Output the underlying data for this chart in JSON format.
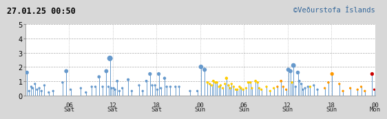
{
  "title_left": "27.01.25 00:50",
  "title_right": "©Veðurstofa Íslands",
  "xlim": [
    0,
    48
  ],
  "ylim": [
    0,
    5
  ],
  "yticks": [
    0,
    1,
    2,
    3,
    4,
    5
  ],
  "xticks": [
    6,
    12,
    18,
    24,
    30,
    36,
    42,
    48
  ],
  "xticklabels_top": [
    "06",
    "12",
    "18",
    "00",
    "06",
    "12",
    "18",
    "00"
  ],
  "xticklabels_bot": [
    "Sat",
    "Sat",
    "Sat",
    "Sun",
    "Sun",
    "Sun",
    "Sun",
    "Mon"
  ],
  "vlines": [
    0,
    6,
    12,
    18,
    24,
    30,
    36,
    42,
    48
  ],
  "bg_color": "#d8d8d8",
  "plot_bg": "#ffffff",
  "blue_color": "#6699cc",
  "yellow_color": "#ffcc00",
  "orange_color": "#ff9900",
  "red_color": "#cc0000",
  "earthquakes": [
    {
      "t": 0.2,
      "m": 1.6,
      "color": "blue"
    },
    {
      "t": 0.5,
      "m": 0.3,
      "color": "blue"
    },
    {
      "t": 0.8,
      "m": 0.6,
      "color": "blue"
    },
    {
      "t": 1.0,
      "m": 0.5,
      "color": "blue"
    },
    {
      "t": 1.3,
      "m": 0.8,
      "color": "blue"
    },
    {
      "t": 1.6,
      "m": 0.4,
      "color": "blue"
    },
    {
      "t": 1.9,
      "m": 0.5,
      "color": "blue"
    },
    {
      "t": 2.2,
      "m": 0.3,
      "color": "blue"
    },
    {
      "t": 2.6,
      "m": 0.7,
      "color": "blue"
    },
    {
      "t": 3.2,
      "m": 0.2,
      "color": "blue"
    },
    {
      "t": 3.8,
      "m": 0.3,
      "color": "blue"
    },
    {
      "t": 5.1,
      "m": 0.9,
      "color": "blue"
    },
    {
      "t": 5.6,
      "m": 1.7,
      "color": "blue"
    },
    {
      "t": 6.2,
      "m": 0.4,
      "color": "blue"
    },
    {
      "t": 7.6,
      "m": 0.5,
      "color": "blue"
    },
    {
      "t": 8.3,
      "m": 0.2,
      "color": "blue"
    },
    {
      "t": 9.1,
      "m": 0.6,
      "color": "blue"
    },
    {
      "t": 9.6,
      "m": 0.6,
      "color": "blue"
    },
    {
      "t": 10.1,
      "m": 1.3,
      "color": "blue"
    },
    {
      "t": 10.6,
      "m": 0.6,
      "color": "blue"
    },
    {
      "t": 11.1,
      "m": 1.7,
      "color": "blue"
    },
    {
      "t": 11.4,
      "m": 0.6,
      "color": "blue"
    },
    {
      "t": 11.6,
      "m": 2.6,
      "color": "blue"
    },
    {
      "t": 11.8,
      "m": 0.5,
      "color": "blue"
    },
    {
      "t": 12.1,
      "m": 0.5,
      "color": "blue"
    },
    {
      "t": 12.3,
      "m": 0.4,
      "color": "blue"
    },
    {
      "t": 12.6,
      "m": 1.0,
      "color": "blue"
    },
    {
      "t": 12.9,
      "m": 0.3,
      "color": "blue"
    },
    {
      "t": 13.3,
      "m": 0.5,
      "color": "blue"
    },
    {
      "t": 14.1,
      "m": 1.1,
      "color": "blue"
    },
    {
      "t": 14.6,
      "m": 0.3,
      "color": "blue"
    },
    {
      "t": 15.6,
      "m": 0.7,
      "color": "blue"
    },
    {
      "t": 16.1,
      "m": 0.3,
      "color": "blue"
    },
    {
      "t": 16.6,
      "m": 1.0,
      "color": "blue"
    },
    {
      "t": 17.1,
      "m": 1.5,
      "color": "blue"
    },
    {
      "t": 17.4,
      "m": 0.7,
      "color": "blue"
    },
    {
      "t": 17.8,
      "m": 0.7,
      "color": "blue"
    },
    {
      "t": 18.1,
      "m": 0.4,
      "color": "blue"
    },
    {
      "t": 18.3,
      "m": 1.5,
      "color": "blue"
    },
    {
      "t": 18.6,
      "m": 0.5,
      "color": "blue"
    },
    {
      "t": 19.1,
      "m": 1.2,
      "color": "blue"
    },
    {
      "t": 19.4,
      "m": 0.6,
      "color": "blue"
    },
    {
      "t": 19.9,
      "m": 0.6,
      "color": "blue"
    },
    {
      "t": 20.6,
      "m": 0.6,
      "color": "blue"
    },
    {
      "t": 21.1,
      "m": 0.6,
      "color": "blue"
    },
    {
      "t": 22.6,
      "m": 0.3,
      "color": "blue"
    },
    {
      "t": 23.6,
      "m": 0.3,
      "color": "blue"
    },
    {
      "t": 24.1,
      "m": 2.0,
      "color": "blue"
    },
    {
      "t": 24.6,
      "m": 1.8,
      "color": "blue"
    },
    {
      "t": 25.0,
      "m": 0.9,
      "color": "yellow"
    },
    {
      "t": 25.3,
      "m": 0.8,
      "color": "yellow"
    },
    {
      "t": 25.6,
      "m": 0.7,
      "color": "yellow"
    },
    {
      "t": 25.8,
      "m": 1.0,
      "color": "yellow"
    },
    {
      "t": 26.1,
      "m": 0.9,
      "color": "yellow"
    },
    {
      "t": 26.3,
      "m": 0.9,
      "color": "yellow"
    },
    {
      "t": 26.6,
      "m": 0.6,
      "color": "yellow"
    },
    {
      "t": 26.8,
      "m": 0.7,
      "color": "yellow"
    },
    {
      "t": 27.1,
      "m": 0.5,
      "color": "yellow"
    },
    {
      "t": 27.4,
      "m": 0.8,
      "color": "yellow"
    },
    {
      "t": 27.6,
      "m": 1.2,
      "color": "yellow"
    },
    {
      "t": 27.9,
      "m": 0.7,
      "color": "yellow"
    },
    {
      "t": 28.1,
      "m": 0.5,
      "color": "yellow"
    },
    {
      "t": 28.3,
      "m": 0.8,
      "color": "yellow"
    },
    {
      "t": 28.6,
      "m": 0.6,
      "color": "yellow"
    },
    {
      "t": 28.9,
      "m": 0.4,
      "color": "yellow"
    },
    {
      "t": 29.1,
      "m": 0.4,
      "color": "yellow"
    },
    {
      "t": 29.4,
      "m": 0.6,
      "color": "yellow"
    },
    {
      "t": 29.6,
      "m": 0.5,
      "color": "yellow"
    },
    {
      "t": 29.9,
      "m": 0.4,
      "color": "yellow"
    },
    {
      "t": 30.3,
      "m": 0.5,
      "color": "yellow"
    },
    {
      "t": 30.6,
      "m": 0.9,
      "color": "yellow"
    },
    {
      "t": 30.9,
      "m": 0.9,
      "color": "yellow"
    },
    {
      "t": 31.1,
      "m": 0.5,
      "color": "yellow"
    },
    {
      "t": 31.6,
      "m": 1.0,
      "color": "yellow"
    },
    {
      "t": 31.9,
      "m": 0.9,
      "color": "yellow"
    },
    {
      "t": 32.1,
      "m": 0.5,
      "color": "yellow"
    },
    {
      "t": 32.4,
      "m": 0.4,
      "color": "yellow"
    },
    {
      "t": 33.1,
      "m": 0.6,
      "color": "yellow"
    },
    {
      "t": 33.6,
      "m": 0.3,
      "color": "yellow"
    },
    {
      "t": 34.1,
      "m": 0.5,
      "color": "yellow"
    },
    {
      "t": 34.6,
      "m": 0.6,
      "color": "orange"
    },
    {
      "t": 35.1,
      "m": 1.0,
      "color": "orange"
    },
    {
      "t": 35.4,
      "m": 0.6,
      "color": "orange"
    },
    {
      "t": 35.8,
      "m": 0.4,
      "color": "orange"
    },
    {
      "t": 36.1,
      "m": 1.8,
      "color": "blue"
    },
    {
      "t": 36.4,
      "m": 1.7,
      "color": "blue"
    },
    {
      "t": 36.6,
      "m": 0.9,
      "color": "yellow"
    },
    {
      "t": 36.8,
      "m": 2.1,
      "color": "blue"
    },
    {
      "t": 37.1,
      "m": 0.6,
      "color": "blue"
    },
    {
      "t": 37.4,
      "m": 1.6,
      "color": "blue"
    },
    {
      "t": 37.6,
      "m": 1.0,
      "color": "blue"
    },
    {
      "t": 37.9,
      "m": 0.8,
      "color": "blue"
    },
    {
      "t": 38.1,
      "m": 0.4,
      "color": "blue"
    },
    {
      "t": 38.4,
      "m": 0.5,
      "color": "blue"
    },
    {
      "t": 38.8,
      "m": 0.6,
      "color": "blue"
    },
    {
      "t": 39.1,
      "m": 0.6,
      "color": "yellow"
    },
    {
      "t": 39.6,
      "m": 0.7,
      "color": "blue"
    },
    {
      "t": 40.1,
      "m": 0.4,
      "color": "blue"
    },
    {
      "t": 41.1,
      "m": 0.5,
      "color": "orange"
    },
    {
      "t": 41.6,
      "m": 0.9,
      "color": "orange"
    },
    {
      "t": 42.1,
      "m": 1.5,
      "color": "orange"
    },
    {
      "t": 43.1,
      "m": 0.8,
      "color": "orange"
    },
    {
      "t": 43.6,
      "m": 0.3,
      "color": "orange"
    },
    {
      "t": 44.6,
      "m": 0.5,
      "color": "orange"
    },
    {
      "t": 45.6,
      "m": 0.4,
      "color": "orange"
    },
    {
      "t": 46.1,
      "m": 0.6,
      "color": "orange"
    },
    {
      "t": 46.6,
      "m": 0.3,
      "color": "orange"
    },
    {
      "t": 47.6,
      "m": 1.5,
      "color": "red"
    },
    {
      "t": 47.9,
      "m": 0.4,
      "color": "red"
    }
  ]
}
